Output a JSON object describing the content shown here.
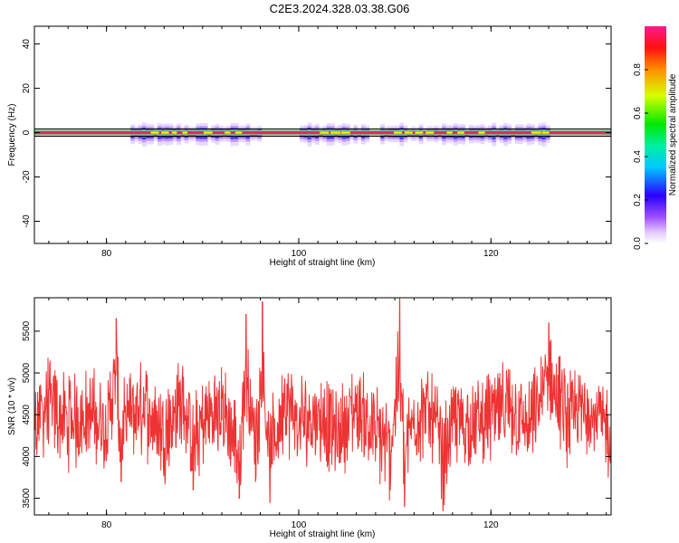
{
  "title": "C2E3.2024.328.03.38.G06",
  "colors": {
    "snr_line": "#ee3333",
    "carrier": "#e0245e",
    "frame": "#000000"
  },
  "chart_data": [
    {
      "type": "heatmap",
      "title": "C2E3.2024.328.03.38.G06",
      "xlabel": "Height of straight line (km)",
      "ylabel": "Frequency (Hz)",
      "xlim": [
        72.5,
        132.5
      ],
      "ylim": [
        -50,
        48
      ],
      "xticks": [
        80,
        100,
        120
      ],
      "yticks": [
        40,
        20,
        0,
        -20,
        -40
      ],
      "grid": false,
      "colorbar": {
        "label": "Normalized spectral amplitude",
        "range": [
          0.0,
          1.0
        ],
        "ticks": [
          "0.0",
          "0.2",
          "0.4",
          "0.6",
          "0.8"
        ]
      },
      "carrier_frequency_hz": 0,
      "spread_segments_km": [
        [
          82.5,
          96
        ],
        [
          100,
          107
        ],
        [
          108.5,
          126
        ]
      ]
    },
    {
      "type": "line",
      "xlabel": "Height of straight line (km)",
      "ylabel": "SNR (10 * v/v)",
      "xlim": [
        72.5,
        132.5
      ],
      "ylim": [
        3300,
        5900
      ],
      "xticks": [
        80,
        100,
        120
      ],
      "yticks": [
        3500,
        4000,
        4500,
        5000,
        5500
      ],
      "grid": false,
      "series": [
        {
          "x": [
            72.5,
            74,
            76,
            78,
            80,
            81,
            81.5,
            82,
            84,
            86,
            88,
            89,
            90,
            92,
            93.8,
            94.5,
            95.5,
            96.2,
            97,
            98.5,
            100,
            102,
            104,
            106,
            108,
            109.5,
            110.5,
            111,
            112,
            114,
            115,
            116,
            118,
            120,
            122,
            124,
            126,
            128,
            130,
            132,
            132.5
          ],
          "values": [
            4500,
            4800,
            4350,
            4600,
            4200,
            5650,
            3700,
            4450,
            4750,
            4100,
            4950,
            3600,
            4400,
            4700,
            3500,
            5700,
            3700,
            5850,
            3450,
            4850,
            4300,
            4600,
            4000,
            4750,
            4100,
            3600,
            5900,
            3400,
            4500,
            4650,
            3350,
            4450,
            4250,
            4550,
            4700,
            4150,
            5600,
            4400,
            4800,
            4200,
            3800
          ]
        }
      ]
    }
  ]
}
